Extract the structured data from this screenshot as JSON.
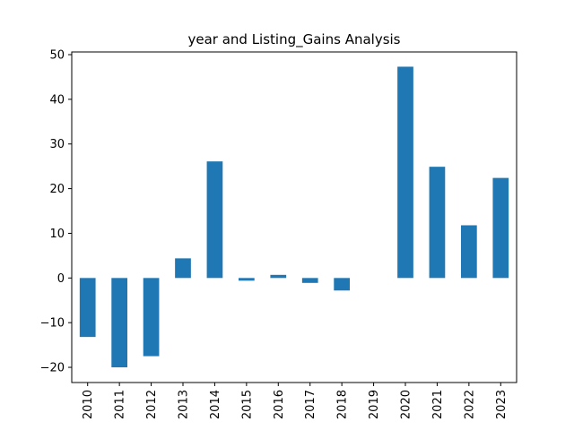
{
  "chart_data": {
    "type": "bar",
    "title": "year and Listing_Gains Analysis",
    "xlabel": "",
    "ylabel": "",
    "categories": [
      "2010",
      "2011",
      "2012",
      "2013",
      "2014",
      "2015",
      "2016",
      "2017",
      "2018",
      "2019",
      "2020",
      "2021",
      "2022",
      "2023"
    ],
    "values": [
      -13.2,
      -20.0,
      -17.5,
      4.4,
      26.1,
      -0.6,
      0.7,
      -1.1,
      -2.8,
      0.0,
      47.3,
      24.9,
      11.8,
      22.4
    ],
    "ylim": [
      -23.4,
      50.6
    ],
    "yticks": [
      -20,
      -10,
      0,
      10,
      20,
      30,
      40,
      50
    ],
    "ytick_labels": [
      "−20",
      "−10",
      "0",
      "10",
      "20",
      "30",
      "40",
      "50"
    ],
    "bar_color": "#1f77b4",
    "grid": false,
    "legend": "none"
  }
}
